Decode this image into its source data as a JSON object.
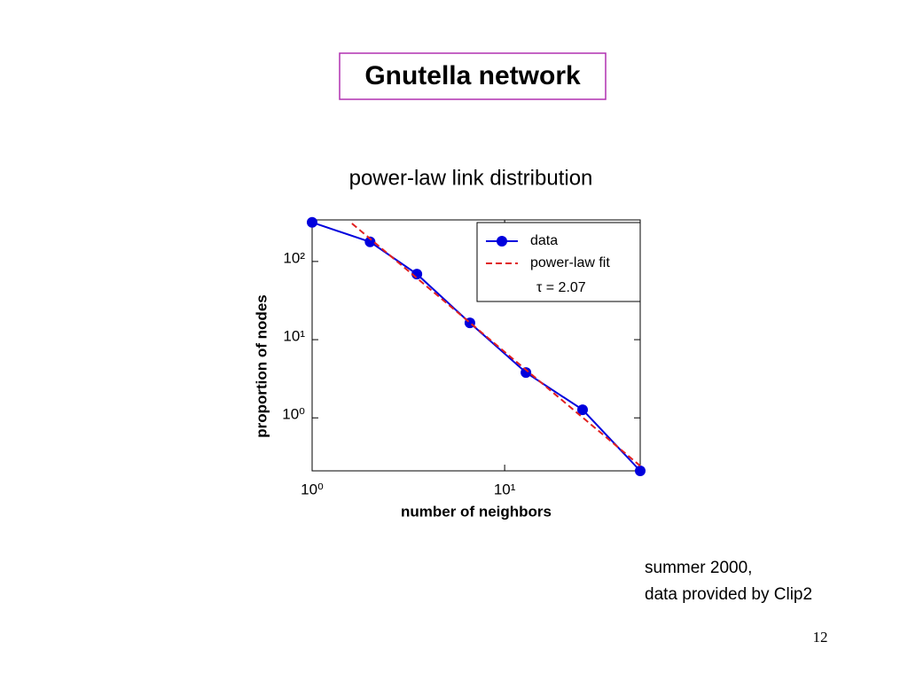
{
  "slide_title": "Gnutella network",
  "note": [
    "summer 2000,",
    "data provided by Clip2"
  ],
  "page_number": "12",
  "chart_data": {
    "type": "line",
    "title": "power-law link distribution",
    "x_label": "number of neighbors",
    "y_label": "proportion of nodes",
    "log_x": true,
    "log_y": true,
    "grid": false,
    "xlim": [
      1,
      50.6
    ],
    "ylim": [
      0.21,
      340
    ],
    "xticks": [
      {
        "value": 1,
        "label": "10⁰"
      },
      {
        "value": 10,
        "label": "10¹"
      }
    ],
    "yticks": [
      {
        "value": 1,
        "label": "10⁰"
      },
      {
        "value": 10,
        "label": "10¹"
      },
      {
        "value": 100,
        "label": "10²"
      }
    ],
    "legend": "upper right",
    "series": [
      {
        "name": "data",
        "color": "#0000dd",
        "markers": true,
        "dashed": false,
        "x": [
          1,
          2,
          3.5,
          6.6,
          12.9,
          25.4,
          50.6
        ],
        "values": [
          316,
          178,
          69,
          16.4,
          3.8,
          1.27,
          0.21
        ]
      },
      {
        "name": "power-law fit",
        "color": "#e02020",
        "markers": false,
        "dashed": true,
        "x": [
          1.61,
          50.6
        ],
        "values": [
          306,
          0.243
        ]
      }
    ],
    "annotation": "τ = 2.07"
  }
}
